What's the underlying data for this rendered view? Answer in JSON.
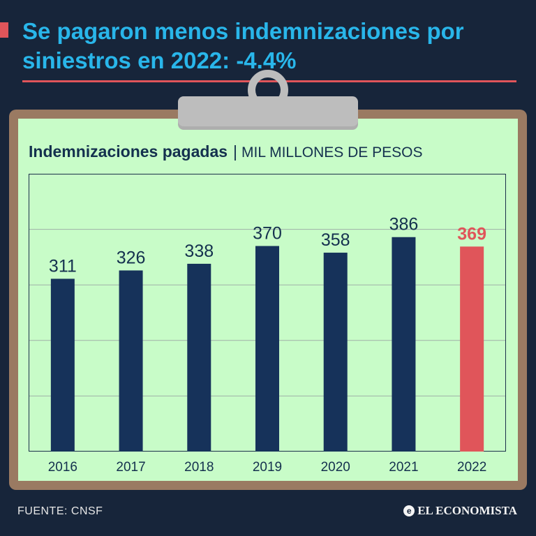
{
  "header": {
    "title": "Se pagaron menos indemnizaciones por siniestros en 2022: -4.4%"
  },
  "chart_header": {
    "title": "Indemnizaciones pagadas",
    "separator": "|",
    "unit": "MIL MILLONES DE PESOS"
  },
  "chart_data": {
    "type": "bar",
    "title": "Indemnizaciones pagadas",
    "ylabel": "MIL MILLONES DE PESOS",
    "xlabel": "",
    "categories": [
      "2016",
      "2017",
      "2018",
      "2019",
      "2020",
      "2021",
      "2022"
    ],
    "values": [
      311,
      326,
      338,
      370,
      358,
      386,
      369
    ],
    "highlight_index": 6,
    "ylim": [
      0,
      500
    ],
    "grid": true,
    "colors": {
      "bar": "#16325a",
      "highlight": "#e0555a",
      "grid": "#9fb0a8"
    }
  },
  "footer": {
    "source": "FUENTE: CNSF",
    "brand": "EL ECONOMISTA",
    "brand_mark": "e"
  },
  "colors": {
    "background": "#17253a",
    "headline": "#29b6ea",
    "accent": "#e0555a",
    "paper": "#c8fcc8",
    "board": "#9a7a62",
    "clip": "#bdbdbd"
  }
}
